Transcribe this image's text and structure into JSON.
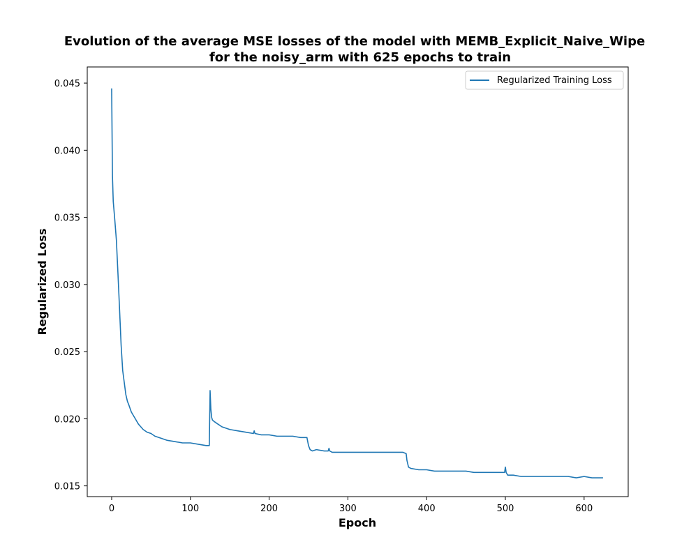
{
  "chart_data": {
    "type": "line",
    "title": "Evolution of the average MSE losses of the model with MEMB_Explicit_Naive_Wipe",
    "subtitle": "for the noisy_arm with 625 epochs to train",
    "xlabel": "Epoch",
    "ylabel": "Regularized Loss",
    "xlim": [
      -31,
      656
    ],
    "ylim": [
      0.0142,
      0.0462
    ],
    "xticks": [
      0,
      100,
      200,
      300,
      400,
      500,
      600
    ],
    "yticks": [
      0.015,
      0.02,
      0.025,
      0.03,
      0.035,
      0.04,
      0.045
    ],
    "ytick_format": 3,
    "grid": false,
    "legend": "upper-right",
    "series": [
      {
        "name": "Regularized Training Loss",
        "color": "#1f77b4",
        "x": [
          0,
          1,
          2,
          4,
          6,
          8,
          10,
          12,
          14,
          16,
          18,
          20,
          22,
          25,
          28,
          31,
          34,
          37,
          40,
          45,
          50,
          55,
          60,
          70,
          80,
          90,
          100,
          110,
          120,
          124,
          125,
          126,
          127,
          128,
          130,
          135,
          140,
          150,
          160,
          170,
          180,
          181,
          182,
          190,
          200,
          210,
          220,
          230,
          240,
          248,
          250,
          252,
          255,
          260,
          270,
          275,
          276,
          277,
          280,
          290,
          300,
          310,
          320,
          330,
          340,
          350,
          360,
          370,
          374,
          375,
          377,
          380,
          390,
          400,
          410,
          420,
          430,
          440,
          450,
          460,
          470,
          480,
          490,
          499,
          500,
          501,
          503,
          510,
          520,
          530,
          540,
          550,
          560,
          570,
          580,
          590,
          600,
          610,
          624
        ],
        "values": [
          0.0446,
          0.0381,
          0.0362,
          0.0348,
          0.0333,
          0.0308,
          0.0282,
          0.0255,
          0.0236,
          0.0227,
          0.0218,
          0.0213,
          0.021,
          0.0205,
          0.0202,
          0.0199,
          0.0196,
          0.0194,
          0.0192,
          0.019,
          0.0189,
          0.0187,
          0.0186,
          0.0184,
          0.0183,
          0.0182,
          0.0182,
          0.0181,
          0.018,
          0.018,
          0.0221,
          0.0207,
          0.0201,
          0.0199,
          0.0198,
          0.0196,
          0.0194,
          0.0192,
          0.0191,
          0.019,
          0.0189,
          0.0191,
          0.0189,
          0.0188,
          0.0188,
          0.0187,
          0.0187,
          0.0187,
          0.0186,
          0.0186,
          0.018,
          0.0177,
          0.0176,
          0.0177,
          0.0176,
          0.0176,
          0.0178,
          0.0176,
          0.0175,
          0.0175,
          0.0175,
          0.0175,
          0.0175,
          0.0175,
          0.0175,
          0.0175,
          0.0175,
          0.0175,
          0.0174,
          0.0169,
          0.0164,
          0.0163,
          0.0162,
          0.0162,
          0.0161,
          0.0161,
          0.0161,
          0.0161,
          0.0161,
          0.016,
          0.016,
          0.016,
          0.016,
          0.016,
          0.0164,
          0.016,
          0.0158,
          0.0158,
          0.0157,
          0.0157,
          0.0157,
          0.0157,
          0.0157,
          0.0157,
          0.0157,
          0.0156,
          0.0157,
          0.0156,
          0.0156
        ]
      }
    ]
  }
}
